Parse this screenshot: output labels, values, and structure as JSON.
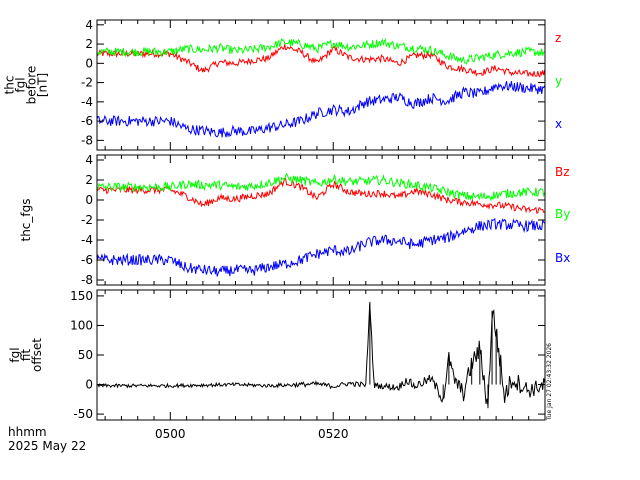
{
  "chart_data": [
    {
      "type": "line",
      "ylabel": [
        "thc",
        "fgl",
        "before",
        "[nT]"
      ],
      "ylim": [
        -9,
        4.5
      ],
      "yticks": [
        4,
        2,
        0,
        -2,
        -4,
        -6,
        -8
      ],
      "series": [
        {
          "name": "z",
          "color": "#ff0000",
          "x": [
            0,
            2,
            4,
            6,
            8,
            10,
            12,
            14,
            16,
            18,
            20,
            22,
            24,
            26,
            28,
            30,
            32,
            34,
            36,
            38,
            40,
            42,
            44,
            46
          ],
          "values": [
            1.0,
            0.2,
            -0.8,
            0.1,
            0.0,
            0.3,
            0.5,
            1.8,
            1.2,
            0.0,
            1.5,
            0.6,
            0.4,
            0.5,
            0.0,
            0.8,
            0.9,
            -0.3,
            -0.6,
            -1.0,
            -0.5,
            -1.0,
            -1.1,
            -1.0
          ]
        },
        {
          "name": "y",
          "color": "#00ff00",
          "x": [
            0,
            2,
            4,
            6,
            8,
            10,
            12,
            14,
            16,
            18,
            20,
            22,
            24,
            26,
            28,
            30,
            32,
            34,
            36,
            38,
            40,
            42,
            44,
            46
          ],
          "values": [
            1.2,
            1.5,
            1.4,
            1.6,
            1.3,
            1.4,
            1.7,
            2.2,
            2.0,
            1.5,
            2.1,
            1.7,
            1.9,
            2.2,
            1.8,
            1.6,
            1.4,
            0.8,
            0.3,
            0.6,
            0.9,
            1.1,
            1.2,
            1.1
          ]
        },
        {
          "name": "x",
          "color": "#0000ff",
          "x": [
            0,
            2,
            4,
            6,
            8,
            10,
            12,
            14,
            16,
            18,
            20,
            22,
            24,
            26,
            28,
            30,
            32,
            34,
            36,
            38,
            40,
            42,
            44,
            46
          ],
          "values": [
            -6.0,
            -6.8,
            -7.0,
            -7.2,
            -7.0,
            -7.1,
            -6.7,
            -6.4,
            -6.0,
            -5.2,
            -4.8,
            -5.0,
            -4.0,
            -3.8,
            -3.5,
            -4.2,
            -3.6,
            -3.9,
            -3.0,
            -3.2,
            -2.3,
            -2.4,
            -2.6,
            -2.7
          ]
        }
      ]
    },
    {
      "type": "line",
      "ylabel": [
        "thc_fgs"
      ],
      "ylim": [
        -8.5,
        4.5
      ],
      "yticks": [
        4,
        2,
        0,
        -2,
        -4,
        -6,
        -8
      ],
      "series": [
        {
          "name": "Bz",
          "color": "#ff0000",
          "x": [
            0,
            2,
            4,
            6,
            8,
            10,
            12,
            14,
            16,
            18,
            20,
            22,
            24,
            26,
            28,
            30,
            32,
            34,
            36,
            38,
            40,
            42,
            44,
            46
          ],
          "values": [
            1.0,
            0.4,
            -0.5,
            0.2,
            0.1,
            0.4,
            0.6,
            1.9,
            1.3,
            0.2,
            1.6,
            0.8,
            0.6,
            0.7,
            0.3,
            0.9,
            0.6,
            0.0,
            -0.2,
            -0.4,
            -0.5,
            -0.7,
            -1.0,
            -1.0
          ]
        },
        {
          "name": "By",
          "color": "#00ff00",
          "x": [
            0,
            2,
            4,
            6,
            8,
            10,
            12,
            14,
            16,
            18,
            20,
            22,
            24,
            26,
            28,
            30,
            32,
            34,
            36,
            38,
            40,
            42,
            44,
            46
          ],
          "values": [
            1.3,
            1.6,
            1.5,
            1.5,
            1.3,
            1.4,
            1.7,
            2.2,
            2.0,
            1.6,
            2.1,
            1.8,
            1.9,
            2.0,
            1.7,
            1.5,
            1.2,
            0.8,
            0.4,
            0.3,
            0.5,
            0.7,
            0.8,
            0.8
          ]
        },
        {
          "name": "Bx",
          "color": "#0000ff",
          "x": [
            0,
            2,
            4,
            6,
            8,
            10,
            12,
            14,
            16,
            18,
            20,
            22,
            24,
            26,
            28,
            30,
            32,
            34,
            36,
            38,
            40,
            42,
            44,
            46
          ],
          "values": [
            -6.0,
            -6.8,
            -7.0,
            -7.2,
            -7.0,
            -7.1,
            -6.7,
            -6.4,
            -6.0,
            -5.4,
            -5.0,
            -5.2,
            -4.3,
            -4.0,
            -4.1,
            -4.5,
            -4.0,
            -3.8,
            -3.1,
            -2.6,
            -2.4,
            -2.5,
            -2.6,
            -2.6
          ]
        }
      ]
    },
    {
      "type": "line",
      "ylabel": [
        "fgl",
        "fit",
        "offset"
      ],
      "ylim": [
        -60,
        160
      ],
      "yticks": [
        150,
        100,
        50,
        0,
        -50
      ],
      "series": [
        {
          "name": "",
          "color": "#000000",
          "x": [
            0,
            4,
            8,
            12,
            16,
            18,
            20,
            22,
            24,
            24.5,
            25,
            28,
            29,
            30,
            32,
            33.5,
            34.2,
            34.8,
            36,
            37,
            38,
            38.5,
            39,
            39.5,
            40,
            40.5,
            41,
            42,
            44,
            46
          ],
          "values": [
            -2,
            -1,
            0,
            -2,
            0,
            1,
            -3,
            2,
            -1,
            140,
            -1,
            -5,
            8,
            -3,
            10,
            -25,
            45,
            10,
            -15,
            35,
            60,
            10,
            -40,
            125,
            90,
            40,
            -20,
            10,
            -10,
            0
          ],
          "noise": [
            3,
            3,
            3,
            3,
            4,
            4,
            4,
            4,
            5,
            5,
            5,
            6,
            7,
            7,
            8,
            10,
            12,
            12,
            14,
            16,
            18,
            18,
            20,
            22,
            22,
            20,
            18,
            16,
            14,
            12
          ]
        }
      ]
    }
  ],
  "x_axis": {
    "xlim": [
      -9,
      46
    ],
    "ticks": [
      {
        "value": 0,
        "label": "0500"
      },
      {
        "value": 20,
        "label": "0520"
      }
    ],
    "minor_step": 2
  },
  "footer": {
    "time_label": "hhmm",
    "date_label": "2025 May 22",
    "stamp": "Tue Jan 27 02:43:32 2026"
  }
}
